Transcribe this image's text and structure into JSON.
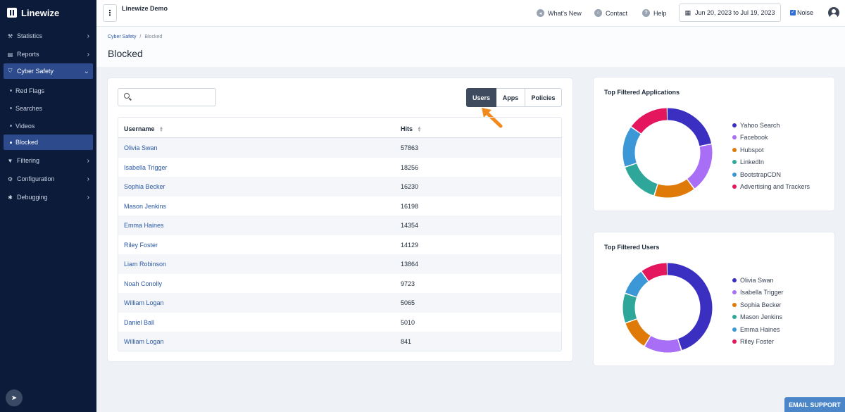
{
  "brand": {
    "name": "Linewize"
  },
  "sidebar": {
    "items": [
      {
        "label": "Statistics",
        "icon": "chart-icon",
        "glyph": "⚒"
      },
      {
        "label": "Reports",
        "icon": "document-icon",
        "glyph": "▤"
      },
      {
        "label": "Cyber Safety",
        "icon": "shield-icon",
        "glyph": "⛉"
      }
    ],
    "sub_items": [
      {
        "label": "Red Flags"
      },
      {
        "label": "Searches"
      },
      {
        "label": "Videos"
      },
      {
        "label": "Blocked"
      }
    ],
    "items_after": [
      {
        "label": "Filtering",
        "icon": "filter-icon",
        "glyph": "▼"
      },
      {
        "label": "Configuration",
        "icon": "gear-icon",
        "glyph": "⚙"
      },
      {
        "label": "Debugging",
        "icon": "bug-icon",
        "glyph": "✱"
      }
    ]
  },
  "topbar": {
    "org": "Linewize Demo",
    "whats_new": "What's New",
    "contact": "Contact",
    "help": "Help",
    "date_range": "Jun 20, 2023 to Jul 19, 2023",
    "noise": "Noise"
  },
  "breadcrumb": {
    "parent": "Cyber Safety",
    "sep": "/",
    "current": "Blocked"
  },
  "page": {
    "title": "Blocked"
  },
  "search": {
    "placeholder": "",
    "value": ""
  },
  "tabs": {
    "users": "Users",
    "apps": "Apps",
    "policies": "Policies"
  },
  "table": {
    "headers": {
      "username": "Username",
      "hits": "Hits"
    },
    "rows": [
      {
        "username": "Olivia Swan",
        "hits": "57863"
      },
      {
        "username": "Isabella Trigger",
        "hits": "18256"
      },
      {
        "username": "Sophia Becker",
        "hits": "16230"
      },
      {
        "username": "Mason Jenkins",
        "hits": "16198"
      },
      {
        "username": "Emma Haines",
        "hits": "14354"
      },
      {
        "username": "Riley Foster",
        "hits": "14129"
      },
      {
        "username": "Liam Robinson",
        "hits": "13864"
      },
      {
        "username": "Noah Conolly",
        "hits": "9723"
      },
      {
        "username": "William Logan",
        "hits": "5065"
      },
      {
        "username": "Daniel Ball",
        "hits": "5010"
      },
      {
        "username": "William Logan",
        "hits": "841"
      }
    ]
  },
  "chart_data": [
    {
      "type": "pie",
      "title": "Top Filtered Applications",
      "categories": [
        "Yahoo Search",
        "Facebook",
        "Hubspot",
        "LinkedIn",
        "BootstrapCDN",
        "Advertising and Trackers"
      ],
      "values": [
        22,
        18,
        15,
        15,
        15,
        15
      ],
      "colors": [
        "#3a2fc0",
        "#a86ef5",
        "#df7a08",
        "#2ea79a",
        "#3b97d6",
        "#e3165e"
      ]
    },
    {
      "type": "pie",
      "title": "Top Filtered Users",
      "categories": [
        "Olivia Swan",
        "Isabella Trigger",
        "Sophia Becker",
        "Mason Jenkins",
        "Emma Haines",
        "Riley Foster"
      ],
      "values": [
        46,
        14,
        11,
        11,
        10,
        10
      ],
      "colors": [
        "#3a2fc0",
        "#a86ef5",
        "#df7a08",
        "#2ea79a",
        "#3b97d6",
        "#e3165e"
      ]
    }
  ],
  "support": {
    "label": "EMAIL SUPPORT"
  }
}
